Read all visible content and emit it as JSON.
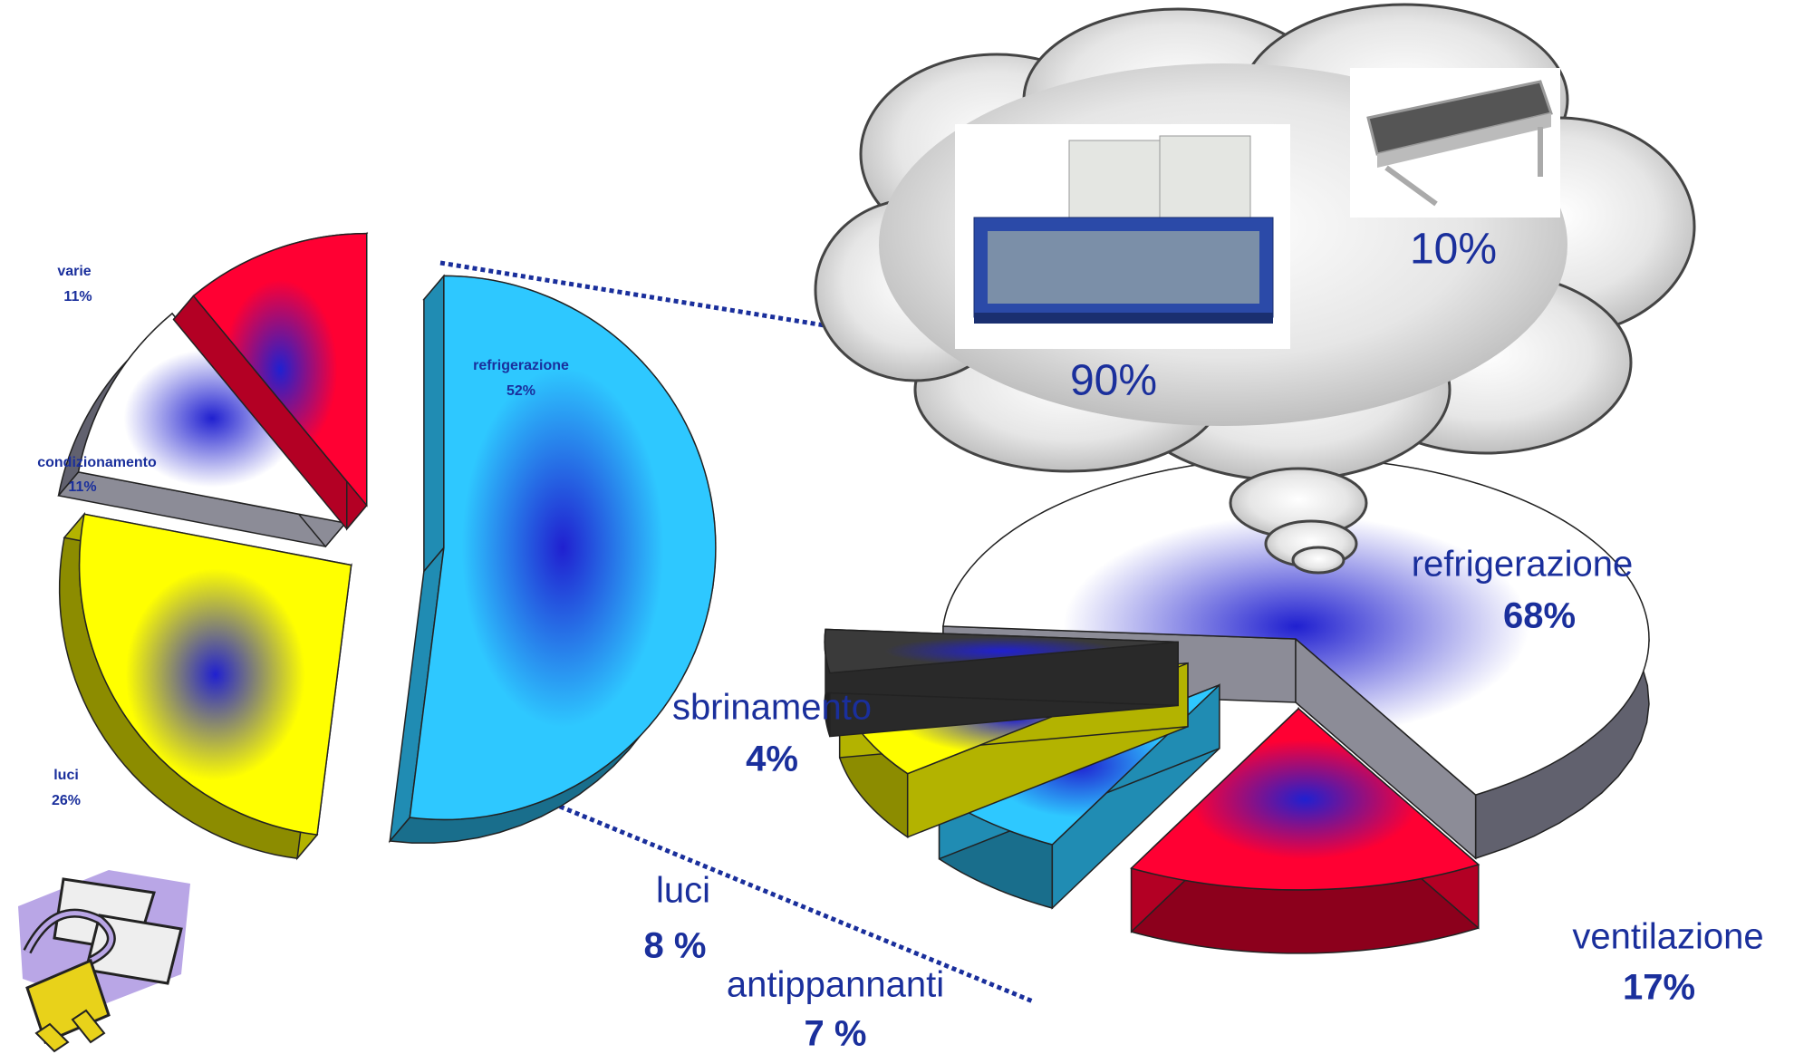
{
  "chart_data": [
    {
      "type": "pie",
      "categories": [
        "refrigerazione",
        "luci",
        "condizionamento",
        "varie"
      ],
      "values": [
        52,
        26,
        11,
        11
      ],
      "value_labels": [
        "52%",
        "26%",
        "11%",
        "11%"
      ],
      "colors": [
        "#2ec8ff",
        "#ffff00",
        "#ffffff",
        "#ff0033"
      ]
    },
    {
      "type": "pie",
      "categories": [
        "refrigerazione",
        "ventilazione",
        "antippannanti",
        "luci",
        "sbrinamento"
      ],
      "values": [
        68,
        17,
        7,
        8,
        4
      ],
      "value_labels": [
        "68%",
        "17%",
        "7 %",
        "8 %",
        "4%"
      ],
      "colors": [
        "#ffffff",
        "#ff0033",
        "#2ec8ff",
        "#ffff00",
        "#3a3a3a"
      ]
    },
    {
      "type": "callout",
      "values": [
        90,
        10
      ],
      "value_labels": [
        "90%",
        "10%"
      ]
    }
  ]
}
